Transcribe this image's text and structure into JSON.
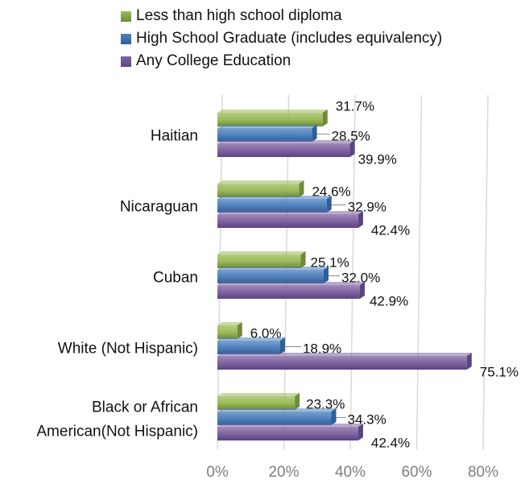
{
  "chart_data": {
    "type": "bar",
    "orientation": "horizontal",
    "categories": [
      [
        "Haitian"
      ],
      [
        "Nicaraguan"
      ],
      [
        "Cuban"
      ],
      [
        "White (Not Hispanic)"
      ],
      [
        "Black or African",
        "American(Not Hispanic)"
      ]
    ],
    "series": [
      {
        "name": "Less than high school diploma",
        "values": [
          31.7,
          24.6,
          25.1,
          6.0,
          23.3
        ],
        "labels": [
          "31.7%",
          "24.6%",
          "25.1%",
          "6.0%",
          "23.3%"
        ]
      },
      {
        "name": "High School Graduate (includes equivalency)",
        "values": [
          28.5,
          32.9,
          32.0,
          18.9,
          34.3
        ],
        "labels": [
          "28.5%",
          "32.9%",
          "32.0%",
          "18.9%",
          "34.3%"
        ]
      },
      {
        "name": "Any College Education",
        "values": [
          39.9,
          42.4,
          42.9,
          75.1,
          42.4
        ],
        "labels": [
          "39.9%",
          "42.4%",
          "42.9%",
          "75.1%",
          "42.4%"
        ]
      }
    ],
    "xlim": [
      0,
      80
    ],
    "xticks": [
      0,
      20,
      40,
      60,
      80
    ],
    "xtick_labels": [
      "0%",
      "20%",
      "40%",
      "60%",
      "80%"
    ],
    "grid": true,
    "legend_position": "top",
    "colors": [
      "#9bbb59",
      "#4f81bd",
      "#8064a2"
    ],
    "dark_colors": [
      "#6e8a3a",
      "#2f5f97",
      "#5a4480"
    ]
  }
}
